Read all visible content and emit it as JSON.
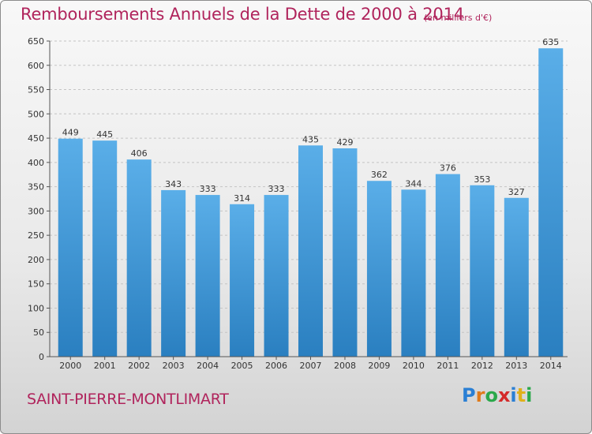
{
  "title": "Remboursements Annuels de la Dette de 2000 à 2014",
  "unit_note": "(en milliers d'€)",
  "commune": "SAINT-PIERRE-MONTLIMART",
  "logo": {
    "letters": [
      "P",
      "r",
      "o",
      "x",
      "i",
      "t",
      "i"
    ],
    "colors": [
      "#2a7fd4",
      "#e07a1a",
      "#2aa84a",
      "#d42a2a",
      "#2a7fd4",
      "#e0b01a",
      "#2aa84a"
    ]
  },
  "colors": {
    "bar_top": "#5aaee8",
    "bar_bottom": "#2a7fc0",
    "title": "#b0245c"
  },
  "chart_data": {
    "type": "bar",
    "categories": [
      "2000",
      "2001",
      "2002",
      "2003",
      "2004",
      "2005",
      "2006",
      "2007",
      "2008",
      "2009",
      "2010",
      "2011",
      "2012",
      "2013",
      "2014"
    ],
    "values": [
      449,
      445,
      406,
      343,
      333,
      314,
      333,
      435,
      429,
      362,
      344,
      376,
      353,
      327,
      635
    ],
    "value_labels": [
      "449",
      "445",
      "406",
      "343",
      "333",
      "314",
      "333",
      "435",
      "429",
      "362",
      "344",
      "376",
      "353",
      "327",
      "635"
    ],
    "ylim": [
      0,
      650
    ],
    "yticks": [
      "0",
      "50",
      "100",
      "150",
      "200",
      "250",
      "300",
      "350",
      "400",
      "450",
      "500",
      "550",
      "600",
      "650"
    ],
    "grid": true,
    "xlabel": "",
    "ylabel": ""
  }
}
